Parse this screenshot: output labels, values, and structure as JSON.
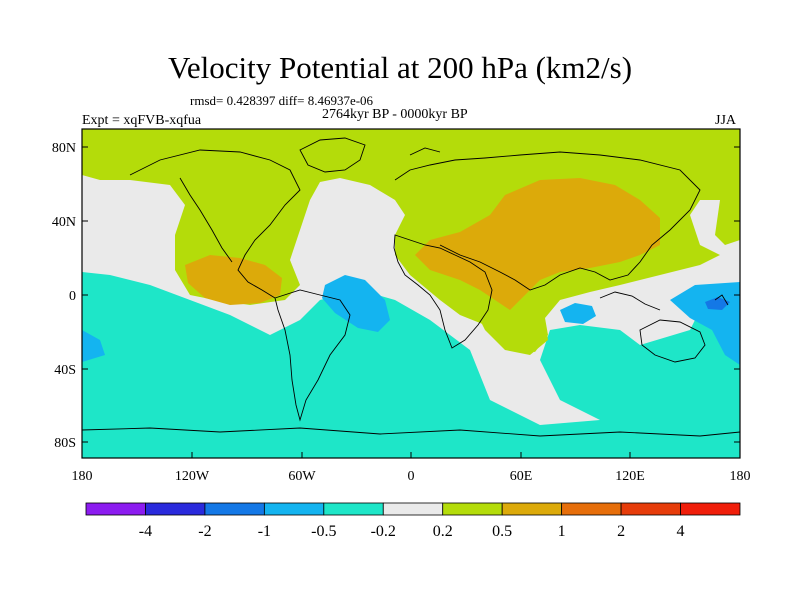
{
  "title": "Velocity Potential at 200 hPa (km2/s)",
  "stats": "rmsd= 0.428397  diff= 8.46937e-06",
  "period": "2764kyr BP - 0000kyr BP",
  "experiment": "Expt = xqFVB-xqfua",
  "season": "JJA",
  "map": {
    "lat_labels": [
      "80N",
      "40N",
      "0",
      "40S",
      "80S"
    ],
    "lon_labels": [
      "180",
      "120W",
      "60W",
      "0",
      "60E",
      "120E",
      "180"
    ]
  },
  "colorbar": {
    "colors": [
      "#8c1cf0",
      "#2a2adc",
      "#1478e6",
      "#14b4f0",
      "#1ee6c8",
      "#eaeaea",
      "#b4dc0a",
      "#dcaa0a",
      "#e66e0a",
      "#e63c0a",
      "#f01e0a"
    ],
    "labels": [
      "-4",
      "-2",
      "-1",
      "-0.5",
      "-0.2",
      "0.2",
      "0.5",
      "1",
      "2",
      "4"
    ]
  },
  "field_colors": {
    "teal": "#1ee6c8",
    "lightblue": "#14b4f0",
    "blue": "#1478e6",
    "grey": "#eaeaea",
    "green": "#b4dc0a",
    "orange": "#dcaa0a"
  }
}
